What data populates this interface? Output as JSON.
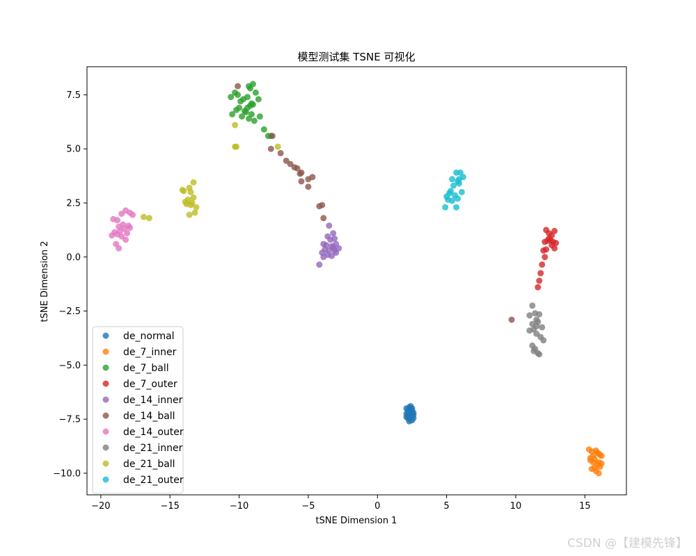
{
  "chart_data": {
    "type": "scatter",
    "title": "模型测试集 TSNE 可视化",
    "xlabel": "tSNE Dimension 1",
    "ylabel": "tSNE Dimension 2",
    "xlim": [
      -21,
      18
    ],
    "ylim": [
      -11,
      8.8
    ],
    "xticks": [
      -20,
      -15,
      -10,
      -5,
      0,
      5,
      10,
      15
    ],
    "yticks": [
      -10.0,
      -7.5,
      -5.0,
      -2.5,
      0.0,
      2.5,
      5.0,
      7.5
    ],
    "ytick_labels": [
      "−10.0",
      "−7.5",
      "−5.0",
      "−2.5",
      "0.0",
      "2.5",
      "5.0",
      "7.5"
    ],
    "xtick_labels": [
      "−20",
      "−15",
      "−10",
      "−5",
      "0",
      "5",
      "10",
      "15"
    ],
    "grid": false,
    "legend_position": "lower-left",
    "series": [
      {
        "name": "de_normal",
        "color": "#1f77b4",
        "x": [
          2.1,
          2.2,
          2.3,
          2.4,
          2.5,
          2.6,
          2.2,
          2.3,
          2.5,
          2.6,
          2.1,
          2.4,
          2.3,
          2.2,
          2.5,
          2.4,
          2.6,
          2.1,
          2.3,
          2.5
        ],
        "y": [
          -7.0,
          -7.1,
          -6.95,
          -7.05,
          -7.0,
          -7.2,
          -7.3,
          -7.4,
          -7.35,
          -7.45,
          -7.25,
          -7.15,
          -7.5,
          -7.45,
          -7.55,
          -6.9,
          -7.3,
          -7.4,
          -7.6,
          -7.1
        ]
      },
      {
        "name": "de_7_inner",
        "color": "#ff7f0e",
        "x": [
          15.3,
          15.5,
          15.6,
          15.8,
          15.9,
          16.0,
          16.1,
          16.2,
          15.4,
          15.6,
          15.7,
          15.9,
          16.0,
          16.1,
          15.5,
          15.7,
          15.8,
          16.0,
          16.2,
          15.4
        ],
        "y": [
          -8.9,
          -9.0,
          -9.2,
          -8.95,
          -9.05,
          -9.1,
          -9.15,
          -9.2,
          -9.4,
          -9.5,
          -9.35,
          -9.6,
          -9.5,
          -9.7,
          -9.8,
          -9.75,
          -9.9,
          -10.0,
          -9.55,
          -9.3
        ]
      },
      {
        "name": "de_7_ball",
        "color": "#2ca02c",
        "x": [
          -10.6,
          -10.3,
          -10.1,
          -9.9,
          -9.7,
          -9.4,
          -9.2,
          -9.0,
          -8.8,
          -8.6,
          -10.5,
          -10.2,
          -10.0,
          -9.8,
          -9.5,
          -9.3,
          -9.1,
          -8.9,
          -9.2,
          -9.0,
          -9.6,
          -9.4,
          -8.5,
          -8.2,
          -7.9,
          -7.7,
          -9.3,
          -9.1
        ],
        "y": [
          7.4,
          7.6,
          7.5,
          7.2,
          7.3,
          7.4,
          7.8,
          8.0,
          7.6,
          7.3,
          6.6,
          6.8,
          6.9,
          6.5,
          6.7,
          6.4,
          6.6,
          6.3,
          7.0,
          7.05,
          6.75,
          6.9,
          6.5,
          5.9,
          5.6,
          5.6,
          7.9,
          7.1
        ]
      },
      {
        "name": "de_7_outer",
        "color": "#d62728",
        "x": [
          12.2,
          12.4,
          12.6,
          12.8,
          12.5,
          12.3,
          12.7,
          12.9,
          12.1,
          12.4,
          12.6,
          12.8,
          12.2,
          12.0,
          12.1,
          11.9,
          11.8,
          11.7,
          11.6
        ],
        "y": [
          1.25,
          1.1,
          1.0,
          1.2,
          0.8,
          0.75,
          0.7,
          0.65,
          0.7,
          0.85,
          0.55,
          0.4,
          0.35,
          0.3,
          0.0,
          -0.35,
          -0.75,
          -1.1,
          -1.4
        ]
      },
      {
        "name": "de_14_inner",
        "color": "#9467bd",
        "x": [
          -3.5,
          -3.2,
          -3.6,
          -3.4,
          -3.1,
          -3.9,
          -3.7,
          -3.3,
          -3.0,
          -2.8,
          -3.8,
          -3.5,
          -3.2,
          -4.0,
          -3.6,
          -3.3,
          -3.0,
          -4.2,
          -3.9,
          -3.1
        ],
        "y": [
          1.45,
          1.1,
          0.95,
          0.8,
          0.85,
          0.6,
          0.55,
          0.5,
          0.6,
          0.4,
          0.35,
          0.3,
          0.45,
          0.2,
          0.1,
          0.05,
          0.2,
          -0.35,
          0.0,
          0.3
        ]
      },
      {
        "name": "de_14_ball",
        "color": "#8c564b",
        "x": [
          -7.6,
          -7.7,
          -7.0,
          -6.6,
          -6.3,
          -6.0,
          -5.8,
          -5.6,
          -5.5,
          -5.0,
          -4.7,
          -5.5,
          -5.0,
          -4.2,
          -4.0,
          -3.9,
          9.7,
          -10.1
        ],
        "y": [
          5.6,
          5.0,
          4.8,
          4.45,
          4.3,
          4.15,
          4.1,
          3.85,
          3.5,
          3.6,
          3.7,
          3.9,
          3.25,
          2.35,
          2.4,
          1.8,
          -2.9,
          7.9
        ]
      },
      {
        "name": "de_14_outer",
        "color": "#e377c2",
        "x": [
          -19.1,
          -18.8,
          -18.5,
          -18.2,
          -17.9,
          -18.7,
          -18.4,
          -18.0,
          -17.7,
          -19.0,
          -18.6,
          -18.3,
          -17.9,
          -19.2,
          -18.8,
          -18.1,
          -18.5,
          -18.2,
          -18.9,
          -18.7
        ],
        "y": [
          1.75,
          1.7,
          2.0,
          2.15,
          2.05,
          1.4,
          1.5,
          1.45,
          1.95,
          1.15,
          1.2,
          1.3,
          1.35,
          1.0,
          1.05,
          1.1,
          0.95,
          0.8,
          0.6,
          0.4
        ]
      },
      {
        "name": "de_21_inner",
        "color": "#7f7f7f",
        "x": [
          11.2,
          11.0,
          11.4,
          11.5,
          11.7,
          11.2,
          11.6,
          11.9,
          11.3,
          11.0,
          11.5,
          11.8,
          12.0,
          11.2,
          11.4,
          11.6,
          11.7,
          11.5,
          11.3
        ],
        "y": [
          -2.25,
          -2.7,
          -2.6,
          -2.9,
          -2.65,
          -3.1,
          -3.0,
          -3.25,
          -3.35,
          -3.4,
          -3.55,
          -3.7,
          -3.85,
          -4.1,
          -4.25,
          -4.45,
          -4.5,
          -3.2,
          -4.35
        ]
      },
      {
        "name": "de_21_ball",
        "color": "#bcbd22",
        "x": [
          -14.0,
          -13.6,
          -13.3,
          -13.5,
          -13.9,
          -13.7,
          -13.4,
          -13.1,
          -13.8,
          -13.5,
          -13.2,
          -13.6,
          -14.1,
          -13.3,
          -16.5,
          -16.9,
          -10.3,
          -10.2,
          -10.3,
          -7.2
        ],
        "y": [
          3.05,
          3.2,
          3.45,
          3.0,
          2.55,
          2.65,
          2.5,
          2.3,
          2.45,
          2.4,
          2.05,
          1.95,
          3.1,
          2.75,
          1.8,
          1.85,
          6.1,
          5.1,
          5.1,
          5.1
        ]
      },
      {
        "name": "de_21_outer",
        "color": "#17becf",
        "x": [
          5.7,
          6.0,
          5.4,
          5.8,
          6.2,
          5.5,
          5.3,
          5.9,
          6.1,
          5.0,
          5.2,
          5.6,
          5.4,
          5.8,
          5.1,
          5.7,
          4.9,
          5.9
        ],
        "y": [
          3.9,
          3.9,
          3.6,
          3.5,
          3.7,
          3.3,
          3.05,
          3.4,
          3.0,
          2.8,
          2.95,
          2.85,
          2.6,
          2.7,
          2.65,
          2.3,
          2.3,
          3.6
        ]
      }
    ]
  },
  "watermark": "CSDN @【建模先锋】"
}
